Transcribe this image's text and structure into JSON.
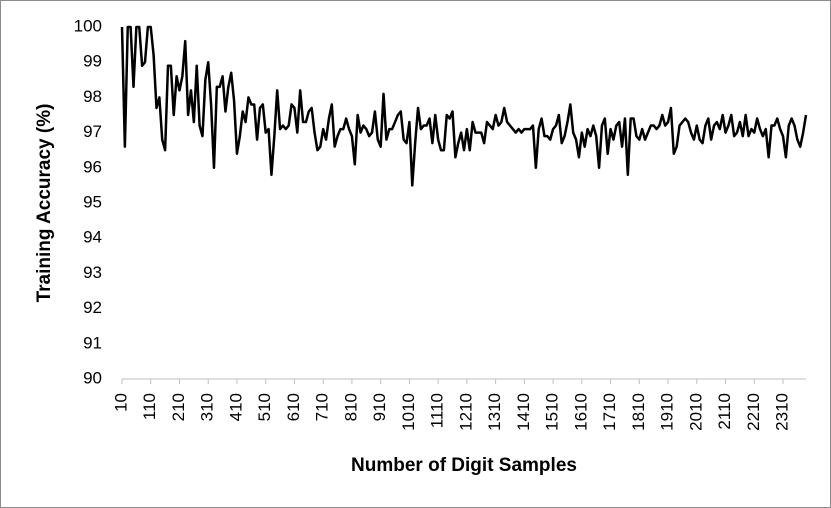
{
  "chart_data": {
    "type": "line",
    "ylabel": "Training Accuracy (%)",
    "xlabel": "Number of Digit Samples",
    "xlim": [
      10,
      2390
    ],
    "ylim": [
      90,
      100
    ],
    "yticks": [
      90,
      91,
      92,
      93,
      94,
      95,
      96,
      97,
      98,
      99,
      100
    ],
    "xticks": [
      10,
      110,
      210,
      310,
      410,
      510,
      610,
      710,
      810,
      910,
      1010,
      1110,
      1210,
      1310,
      1410,
      1510,
      1610,
      1710,
      1810,
      1910,
      2010,
      2110,
      2210,
      2310
    ],
    "grid": false,
    "series": [
      {
        "color": "#000000",
        "x": [
          10,
          20,
          30,
          40,
          50,
          60,
          70,
          80,
          90,
          100,
          110,
          120,
          130,
          140,
          150,
          160,
          170,
          180,
          190,
          200,
          210,
          220,
          230,
          240,
          250,
          260,
          270,
          280,
          290,
          300,
          310,
          320,
          330,
          340,
          350,
          360,
          370,
          380,
          390,
          400,
          410,
          420,
          430,
          440,
          450,
          460,
          470,
          480,
          490,
          500,
          510,
          520,
          530,
          540,
          550,
          560,
          570,
          580,
          590,
          600,
          610,
          620,
          630,
          640,
          650,
          660,
          670,
          680,
          690,
          700,
          710,
          720,
          730,
          740,
          750,
          760,
          770,
          780,
          790,
          800,
          810,
          820,
          830,
          840,
          850,
          860,
          870,
          880,
          890,
          900,
          910,
          920,
          930,
          940,
          950,
          960,
          970,
          980,
          990,
          1000,
          1010,
          1020,
          1030,
          1040,
          1050,
          1060,
          1070,
          1080,
          1090,
          1100,
          1110,
          1120,
          1130,
          1140,
          1150,
          1160,
          1170,
          1180,
          1190,
          1200,
          1210,
          1220,
          1230,
          1240,
          1250,
          1260,
          1270,
          1280,
          1290,
          1300,
          1310,
          1320,
          1330,
          1340,
          1350,
          1360,
          1370,
          1380,
          1390,
          1400,
          1410,
          1420,
          1430,
          1440,
          1450,
          1460,
          1470,
          1480,
          1490,
          1500,
          1510,
          1520,
          1530,
          1540,
          1550,
          1560,
          1570,
          1580,
          1590,
          1600,
          1610,
          1620,
          1630,
          1640,
          1650,
          1660,
          1670,
          1680,
          1690,
          1700,
          1710,
          1720,
          1730,
          1740,
          1750,
          1760,
          1770,
          1780,
          1790,
          1800,
          1810,
          1820,
          1830,
          1840,
          1850,
          1860,
          1870,
          1880,
          1890,
          1900,
          1910,
          1920,
          1930,
          1940,
          1950,
          1960,
          1970,
          1980,
          1990,
          2000,
          2010,
          2020,
          2030,
          2040,
          2050,
          2060,
          2070,
          2080,
          2090,
          2100,
          2110,
          2120,
          2130,
          2140,
          2150,
          2160,
          2170,
          2180,
          2190,
          2200,
          2210,
          2220,
          2230,
          2240,
          2250,
          2260,
          2270,
          2280,
          2290,
          2300,
          2310,
          2320,
          2330,
          2340,
          2350,
          2360,
          2370,
          2380,
          2390
        ],
        "values": [
          100,
          96.6,
          100,
          100,
          98.3,
          100,
          100,
          98.9,
          99,
          100,
          100,
          99.2,
          97.7,
          98,
          96.8,
          96.5,
          98.9,
          98.9,
          97.5,
          98.6,
          98.2,
          98.6,
          99.6,
          97.5,
          98.2,
          97.3,
          98.9,
          97.2,
          96.9,
          98.5,
          99,
          97.8,
          96,
          98.3,
          98.3,
          98.6,
          97.6,
          98.3,
          98.7,
          97.9,
          96.4,
          96.9,
          97.6,
          97.3,
          98,
          97.8,
          97.8,
          96.8,
          97.7,
          97.8,
          97,
          97.1,
          95.8,
          96.9,
          98.2,
          97.1,
          97.2,
          97.1,
          97.2,
          97.8,
          97.7,
          97,
          98.2,
          97.3,
          97.3,
          97.6,
          97.7,
          97,
          96.5,
          96.6,
          97.1,
          96.8,
          97.4,
          97.8,
          96.6,
          96.9,
          97.1,
          97.1,
          97.4,
          97.1,
          96.9,
          96.1,
          97.5,
          97,
          97.2,
          97.1,
          96.9,
          97,
          97.6,
          96.8,
          96.6,
          98.1,
          96.8,
          97.1,
          97.1,
          97.3,
          97.5,
          97.6,
          96.8,
          96.7,
          97.3,
          95.5,
          96.7,
          97.7,
          97.1,
          97.2,
          97.2,
          97.4,
          96.7,
          97.5,
          96.8,
          96.5,
          96.5,
          97.5,
          97.4,
          97.6,
          96.3,
          96.7,
          97,
          96.5,
          97.1,
          96.5,
          97.3,
          97,
          97,
          97,
          96.7,
          97.3,
          97.2,
          97.1,
          97.5,
          97.2,
          97.3,
          97.7,
          97.3,
          97.2,
          97.1,
          97,
          97.1,
          97,
          97.1,
          97.1,
          97.1,
          97.2,
          96,
          97.1,
          97.4,
          96.9,
          96.9,
          96.8,
          97.1,
          97.2,
          97.5,
          96.7,
          96.9,
          97.3,
          97.8,
          97,
          96.8,
          96.3,
          97,
          96.6,
          97.1,
          96.9,
          97.2,
          96.9,
          96,
          97.2,
          97.4,
          96.4,
          97.1,
          96.8,
          97.2,
          97.3,
          96.6,
          97.4,
          95.8,
          97.4,
          97.4,
          96.9,
          96.8,
          97.1,
          96.8,
          97,
          97.2,
          97.2,
          97.1,
          97.2,
          97.5,
          97.2,
          97.3,
          97.7,
          96.4,
          96.6,
          97.2,
          97.3,
          97.4,
          97.3,
          97,
          96.8,
          97.2,
          96.8,
          96.7,
          97.2,
          97.4,
          96.8,
          97.2,
          97.3,
          97.1,
          97.5,
          97,
          97.2,
          97.5,
          96.9,
          97,
          97.3,
          96.9,
          97.5,
          96.9,
          97.1,
          97,
          97.4,
          97.1,
          96.9,
          97.1,
          96.3,
          97.2,
          97.2,
          97.4,
          97.1,
          96.9,
          96.3,
          97.2,
          97.4,
          97.2,
          96.8,
          96.6,
          97,
          97.5
        ]
      }
    ]
  }
}
